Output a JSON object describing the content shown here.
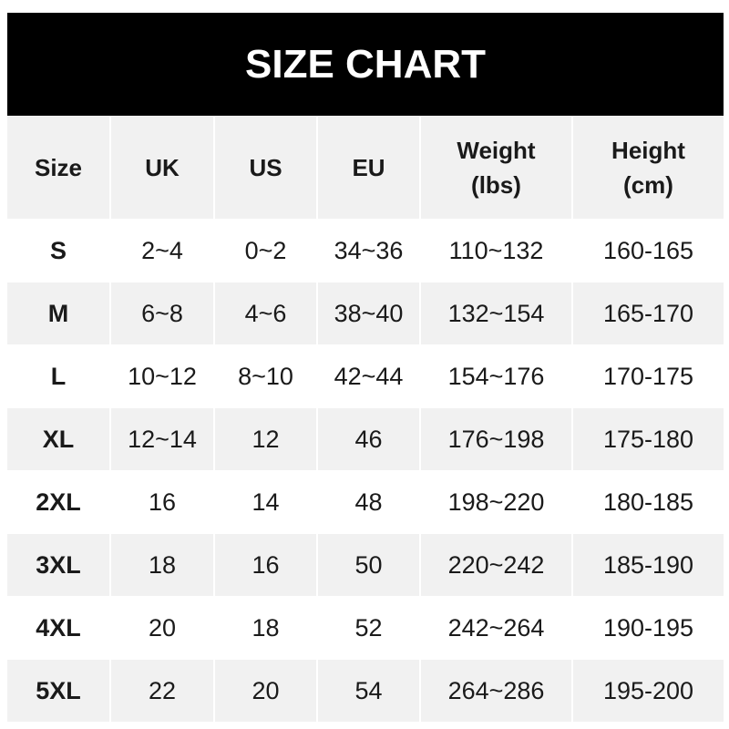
{
  "title": "SIZE CHART",
  "headers": [
    "Size",
    "UK",
    "US",
    "EU",
    "Weight\n(lbs)",
    "Height\n(cm)"
  ],
  "rows": [
    [
      "S",
      "2~4",
      "0~2",
      "34~36",
      "110~132",
      "160-165"
    ],
    [
      "M",
      "6~8",
      "4~6",
      "38~40",
      "132~154",
      "165-170"
    ],
    [
      "L",
      "10~12",
      "8~10",
      "42~44",
      "154~176",
      "170-175"
    ],
    [
      "XL",
      "12~14",
      "12",
      "46",
      "176~198",
      "175-180"
    ],
    [
      "2XL",
      "16",
      "14",
      "48",
      "198~220",
      "180-185"
    ],
    [
      "3XL",
      "18",
      "16",
      "50",
      "220~242",
      "185-190"
    ],
    [
      "4XL",
      "20",
      "18",
      "52",
      "242~264",
      "190-195"
    ],
    [
      "5XL",
      "22",
      "20",
      "54",
      "264~286",
      "195-200"
    ]
  ],
  "colors": {
    "header_bg": "#000000",
    "stripe": "#f1f1f1"
  }
}
